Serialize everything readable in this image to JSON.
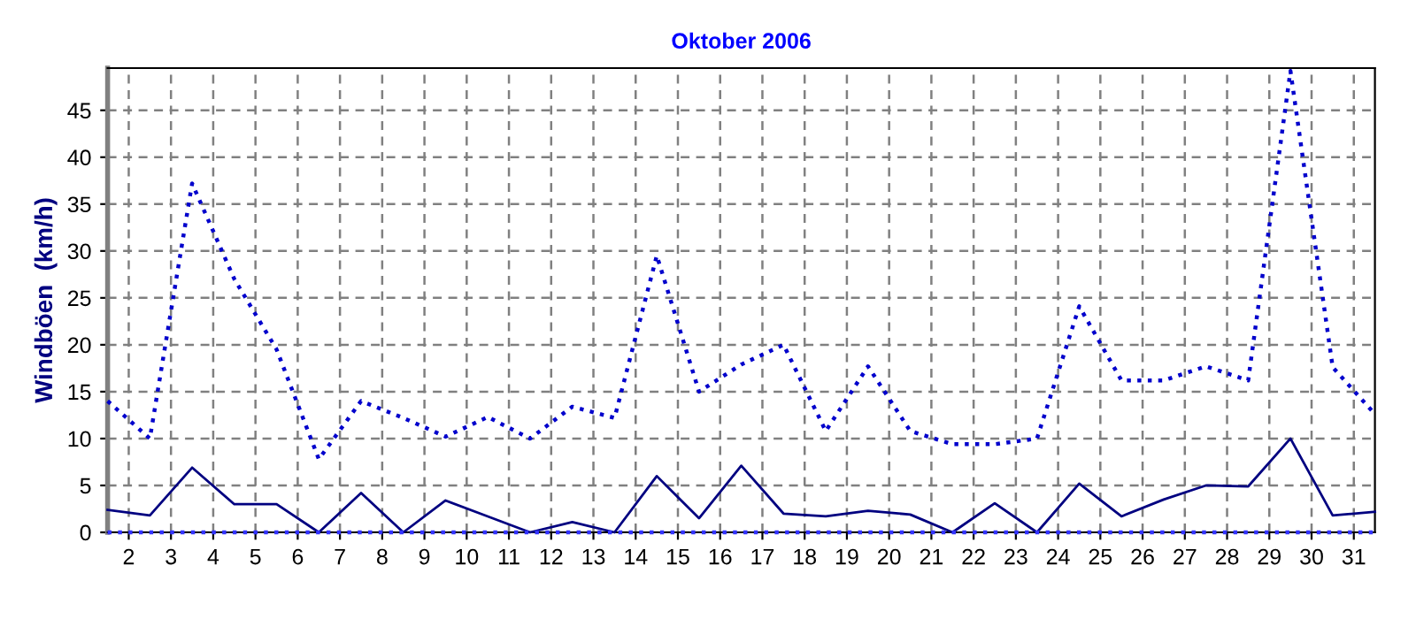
{
  "chart_data": {
    "type": "line",
    "title": "Oktober 2006",
    "ylabel": "Windböen  (km/h)",
    "x": [
      1.5,
      2.5,
      3.5,
      4.5,
      5.5,
      6.5,
      7.5,
      8.5,
      9.5,
      10.5,
      11.5,
      12.5,
      13.5,
      14.5,
      15.5,
      16.5,
      17.5,
      18.5,
      19.5,
      20.5,
      21.5,
      22.5,
      23.5,
      24.5,
      25.5,
      26.5,
      27.5,
      28.5,
      29.5,
      30.5,
      31.5
    ],
    "series": [
      {
        "color": "#0000cc",
        "line_style": "dotted",
        "values": [
          14,
          10,
          37.2,
          27,
          19.5,
          7.8,
          14,
          12.2,
          10.2,
          12.3,
          10,
          13.4,
          12.2,
          29.5,
          15,
          17.9,
          20,
          10.8,
          17.7,
          10.8,
          9.4,
          9.4,
          10,
          24.1,
          16.2,
          16.2,
          17.7,
          16.2,
          49.2,
          17.6,
          12.6
        ]
      },
      {
        "color": "#000080",
        "line_style": "solid",
        "values": [
          2.4,
          1.8,
          6.9,
          3,
          3,
          0,
          4.2,
          0,
          3.4,
          1.7,
          0,
          1.1,
          0,
          6,
          1.5,
          7.1,
          2,
          1.7,
          2.3,
          1.9,
          0,
          3.1,
          0,
          5.2,
          1.7,
          3.5,
          5,
          4.9,
          10,
          1.8,
          2.2
        ]
      },
      {
        "color": "#3333ff",
        "line_style": "dotted",
        "values": [
          0,
          0,
          0,
          0,
          0,
          0,
          0,
          0,
          0,
          0,
          0,
          0,
          0,
          0,
          0,
          0,
          0,
          0,
          0,
          0,
          0,
          0,
          0,
          0,
          0,
          0,
          0,
          0,
          0,
          0,
          0
        ]
      }
    ],
    "xlim": [
      1.5,
      31.5
    ],
    "xticks": [
      2,
      3,
      4,
      5,
      6,
      7,
      8,
      9,
      10,
      11,
      12,
      13,
      14,
      15,
      16,
      17,
      18,
      19,
      20,
      21,
      22,
      23,
      24,
      25,
      26,
      27,
      28,
      29,
      30,
      31
    ],
    "ylim": [
      0,
      49.5
    ],
    "yticks": [
      0,
      5,
      10,
      15,
      20,
      25,
      30,
      35,
      40,
      45
    ],
    "grid": true,
    "marker": "none"
  }
}
